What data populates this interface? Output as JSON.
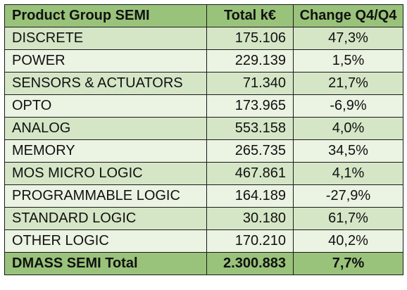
{
  "table": {
    "headers": {
      "group": "Product Group SEMI",
      "total": "Total k€",
      "change": "Change Q4/Q4"
    },
    "rows": [
      {
        "group": "DISCRETE",
        "total": "175.106",
        "change": "47,3%"
      },
      {
        "group": "POWER",
        "total": "229.139",
        "change": "1,5%"
      },
      {
        "group": "SENSORS & ACTUATORS",
        "total": "71.340",
        "change": "21,7%"
      },
      {
        "group": "OPTO",
        "total": "173.965",
        "change": "-6,9%"
      },
      {
        "group": "ANALOG",
        "total": "553.158",
        "change": "4,0%"
      },
      {
        "group": "MEMORY",
        "total": "265.735",
        "change": "34,5%"
      },
      {
        "group": "MOS MICRO LOGIC",
        "total": "467.861",
        "change": "4,1%"
      },
      {
        "group": "PROGRAMMABLE LOGIC",
        "total": "164.189",
        "change": "-27,9%"
      },
      {
        "group": "STANDARD LOGIC",
        "total": "30.180",
        "change": "61,7%"
      },
      {
        "group": "OTHER LOGIC",
        "total": "170.210",
        "change": "40,2%"
      }
    ],
    "total_row": {
      "group": "DMASS SEMI Total",
      "total": "2.300.883",
      "change": "7,7%"
    }
  },
  "colors": {
    "header_background": "#99c37a",
    "row_band_dark": "#d5e6c6",
    "row_band_light": "#ebf3e3",
    "total_background": "#99c37a",
    "border": "#1a1a1a"
  }
}
